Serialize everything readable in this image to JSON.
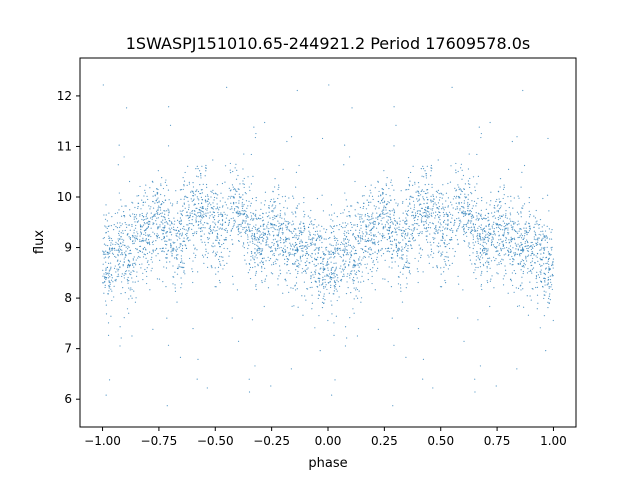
{
  "chart_data": {
    "type": "scatter",
    "title": "1SWASPJ151010.65-244921.2 Period 17609578.0s",
    "xlabel": "phase",
    "ylabel": "flux",
    "xlim": [
      -1.1,
      1.1
    ],
    "ylim": [
      5.45,
      12.75
    ],
    "xticks": [
      -1.0,
      -0.75,
      -0.5,
      -0.25,
      0.0,
      0.25,
      0.5,
      0.75,
      1.0
    ],
    "xtick_labels": [
      "−1.00",
      "−0.75",
      "−0.50",
      "−0.25",
      "0.00",
      "0.25",
      "0.50",
      "0.75",
      "1.00"
    ],
    "yticks": [
      6,
      7,
      8,
      9,
      10,
      11,
      12
    ],
    "ytick_labels": [
      "6",
      "7",
      "8",
      "9",
      "10",
      "11",
      "12"
    ],
    "grid": false,
    "marker_color": "#1f77b4",
    "x_range": [
      -1.0,
      1.0
    ],
    "mean_flux_profile": {
      "phase": [
        0.0,
        0.04,
        0.08,
        0.12,
        0.16,
        0.2,
        0.24,
        0.28,
        0.32,
        0.36,
        0.4,
        0.44,
        0.48,
        0.52,
        0.56,
        0.6,
        0.64,
        0.68,
        0.72,
        0.76,
        0.8,
        0.84,
        0.88,
        0.92,
        0.96,
        1.0
      ],
      "flux": [
        8.6,
        8.8,
        9.0,
        8.8,
        9.2,
        9.4,
        9.6,
        9.3,
        9.0,
        9.3,
        9.6,
        9.8,
        9.4,
        9.2,
        9.6,
        9.9,
        9.5,
        9.1,
        9.2,
        9.3,
        9.1,
        9.0,
        9.1,
        8.9,
        8.7,
        8.6
      ]
    },
    "flux_scatter_sigma": 0.45,
    "outlier_range": [
      5.8,
      12.4
    ],
    "note": "Light curve is phase-folded and mirrored: points for phase -1..0 repeat 0..1."
  }
}
